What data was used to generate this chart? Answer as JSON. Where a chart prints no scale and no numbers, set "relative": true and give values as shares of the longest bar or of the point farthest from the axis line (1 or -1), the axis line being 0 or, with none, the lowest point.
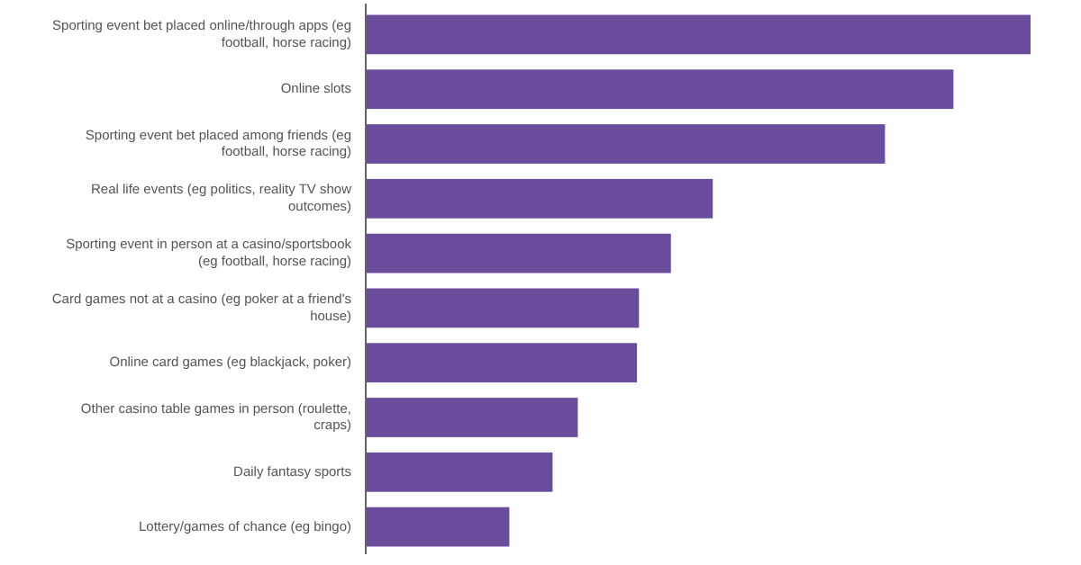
{
  "chart_data": {
    "type": "bar",
    "orientation": "horizontal",
    "relative": true,
    "color": "#6a4c9c",
    "categories": [
      "Sporting event bet placed online/through apps (eg football, horse racing)",
      "Online slots",
      "Sporting event bet placed among friends (eg football, horse racing)",
      "Real life events (eg politics, reality TV show outcomes)",
      "Sporting event in person at a casino/sportsbook (eg football, horse racing)",
      "Card games not at a casino (eg poker at a friend's house)",
      "Online card games (eg blackjack, poker)",
      "Other casino table games in person (roulette, craps)",
      "Daily fantasy sports",
      "Lottery/games of chance (eg bingo)"
    ],
    "values": [
      1,
      0.884,
      0.781,
      0.522,
      0.459,
      0.411,
      0.408,
      0.319,
      0.281,
      0.216
    ]
  }
}
